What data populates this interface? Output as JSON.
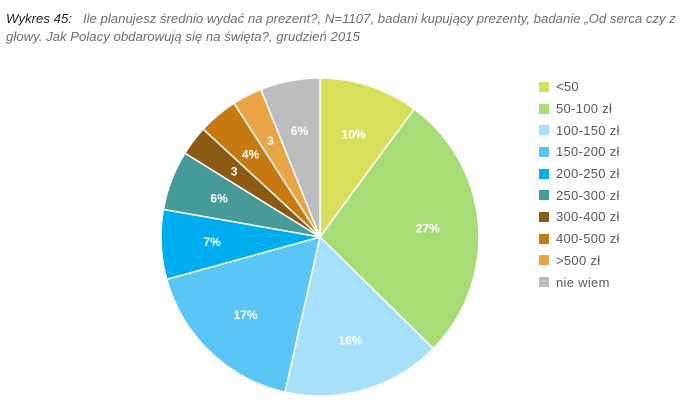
{
  "caption": {
    "lead": "Wykres 45:",
    "text": "Ile planujesz średnio wydać na prezent?, N=1107, badani kupujący prezenty, badanie „Od serca czy z głowy. Jak Polacy obdarowują się na święta?, grudzień 2015"
  },
  "chart_data": {
    "type": "pie",
    "title": "Ile planujesz średnio wydać na prezent?",
    "legend_position": "right",
    "start_angle_deg": 0,
    "direction": "clockwise",
    "slices": [
      {
        "label": "<50",
        "value": 10,
        "value_label": "10%",
        "color": "#d8e05b"
      },
      {
        "label": "50-100 zł",
        "value": 27,
        "value_label": "27%",
        "color": "#a8dc77"
      },
      {
        "label": "100-150 zł",
        "value": 16,
        "value_label": "16%",
        "color": "#a7e0fb"
      },
      {
        "label": "150-200 zł",
        "value": 17,
        "value_label": "17%",
        "color": "#5ac6f5"
      },
      {
        "label": "200-250 zł",
        "value": 7,
        "value_label": "7%",
        "color": "#00aeef"
      },
      {
        "label": "250-300 zł",
        "value": 6,
        "value_label": "6%",
        "color": "#469a98"
      },
      {
        "label": "300-400 zł",
        "value": 3,
        "value_label": "3",
        "color": "#8c5a14"
      },
      {
        "label": "400-500 zł",
        "value": 4,
        "value_label": "4%",
        "color": "#c67a11"
      },
      {
        "label": ">500 zł",
        "value": 3,
        "value_label": "3",
        "color": "#e9a445"
      },
      {
        "label": "nie wiem",
        "value": 6,
        "value_label": "6%",
        "color": "#bcbdbf"
      }
    ]
  }
}
